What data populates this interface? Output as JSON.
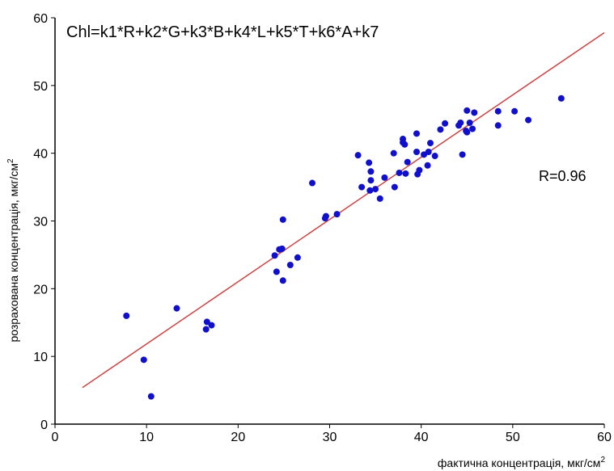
{
  "chart_data": {
    "type": "scatter",
    "formula": "Chl=k1*R+k2*G+k3*B+k4*L+k5*T+k6*A+k7",
    "annotation": "R=0.96",
    "xlabel": "фактична концентрація, мкг/см",
    "ylabel": "розрахована концентрація, мкг/см",
    "unit_superscript": "2",
    "xlim": [
      0,
      60
    ],
    "ylim": [
      0,
      60
    ],
    "xticks": [
      "0",
      "10",
      "20",
      "30",
      "40",
      "50",
      "60"
    ],
    "yticks": [
      "0",
      "10",
      "20",
      "30",
      "40",
      "50",
      "60"
    ],
    "grid": false,
    "colors": {
      "points": "#1010cc",
      "regression_line": "#cc4444",
      "axes": "#000000"
    },
    "regression_line": {
      "x": [
        3,
        60
      ],
      "y": [
        5.4,
        57.8
      ]
    },
    "points": [
      [
        7.8,
        16.0
      ],
      [
        9.7,
        9.5
      ],
      [
        10.5,
        4.1
      ],
      [
        13.3,
        17.1
      ],
      [
        16.5,
        14.0
      ],
      [
        16.6,
        15.1
      ],
      [
        17.1,
        14.6
      ],
      [
        24.0,
        24.9
      ],
      [
        24.2,
        22.5
      ],
      [
        24.5,
        25.8
      ],
      [
        24.8,
        25.9
      ],
      [
        24.9,
        21.2
      ],
      [
        24.9,
        30.2
      ],
      [
        25.7,
        23.5
      ],
      [
        26.5,
        24.6
      ],
      [
        28.1,
        35.6
      ],
      [
        29.5,
        30.4
      ],
      [
        29.6,
        30.7
      ],
      [
        30.8,
        31.0
      ],
      [
        33.1,
        39.7
      ],
      [
        33.5,
        35.0
      ],
      [
        34.3,
        38.6
      ],
      [
        34.4,
        34.5
      ],
      [
        34.5,
        37.3
      ],
      [
        34.5,
        36.0
      ],
      [
        35.0,
        34.7
      ],
      [
        35.5,
        33.3
      ],
      [
        36.0,
        36.4
      ],
      [
        37.0,
        40.0
      ],
      [
        37.1,
        35.0
      ],
      [
        37.6,
        37.1
      ],
      [
        38.0,
        41.6
      ],
      [
        38.0,
        42.1
      ],
      [
        38.2,
        41.3
      ],
      [
        38.3,
        37.0
      ],
      [
        38.5,
        38.7
      ],
      [
        39.5,
        42.9
      ],
      [
        39.5,
        40.2
      ],
      [
        39.6,
        36.9
      ],
      [
        39.8,
        37.5
      ],
      [
        40.3,
        39.8
      ],
      [
        40.7,
        38.2
      ],
      [
        40.8,
        40.2
      ],
      [
        41.0,
        41.5
      ],
      [
        41.5,
        39.6
      ],
      [
        42.1,
        43.5
      ],
      [
        42.6,
        44.4
      ],
      [
        44.1,
        44.1
      ],
      [
        44.3,
        44.5
      ],
      [
        44.5,
        39.8
      ],
      [
        44.9,
        43.3
      ],
      [
        45.0,
        46.3
      ],
      [
        45.0,
        43.1
      ],
      [
        45.3,
        44.5
      ],
      [
        45.6,
        43.6
      ],
      [
        45.8,
        46.0
      ],
      [
        48.4,
        46.2
      ],
      [
        48.4,
        44.1
      ],
      [
        50.2,
        46.2
      ],
      [
        51.7,
        44.9
      ],
      [
        55.3,
        48.1
      ]
    ]
  }
}
